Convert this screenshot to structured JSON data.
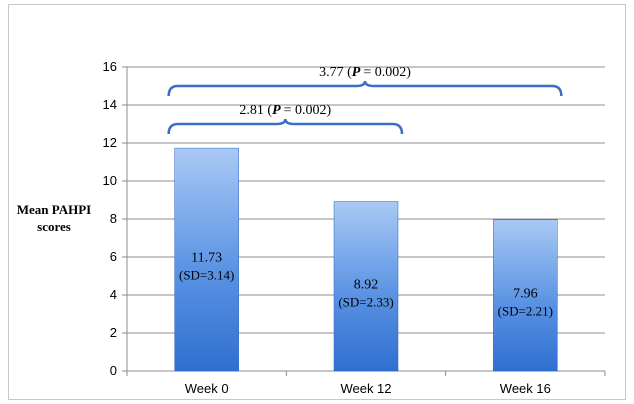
{
  "chart_data": {
    "type": "bar",
    "categories": [
      "Week 0",
      "Week 12",
      "Week 16"
    ],
    "values": [
      11.73,
      8.92,
      7.96
    ],
    "bar_labels": [
      "11.73",
      "8.92",
      "7.96"
    ],
    "bar_sd_labels": [
      "(SD=3.14)",
      "(SD=2.33)",
      "(SD=2.21)"
    ],
    "ylabel_lines": [
      "Mean PAHPI",
      "scores"
    ],
    "xlabel": "",
    "ylim": [
      0,
      16
    ],
    "yticks": [
      "0",
      "2",
      "4",
      "6",
      "8",
      "10",
      "12",
      "14",
      "16"
    ],
    "grid": true,
    "bar_color": "#3f7fd8",
    "annotations": [
      {
        "from": 0,
        "to": 1,
        "value": "2.81",
        "p_label": "P",
        "p_value": "= 0.002)",
        "level": 13
      },
      {
        "from": 0,
        "to": 2,
        "value": "3.77",
        "p_label": "P",
        "p_value": "= 0.002)",
        "level": 15
      }
    ]
  }
}
